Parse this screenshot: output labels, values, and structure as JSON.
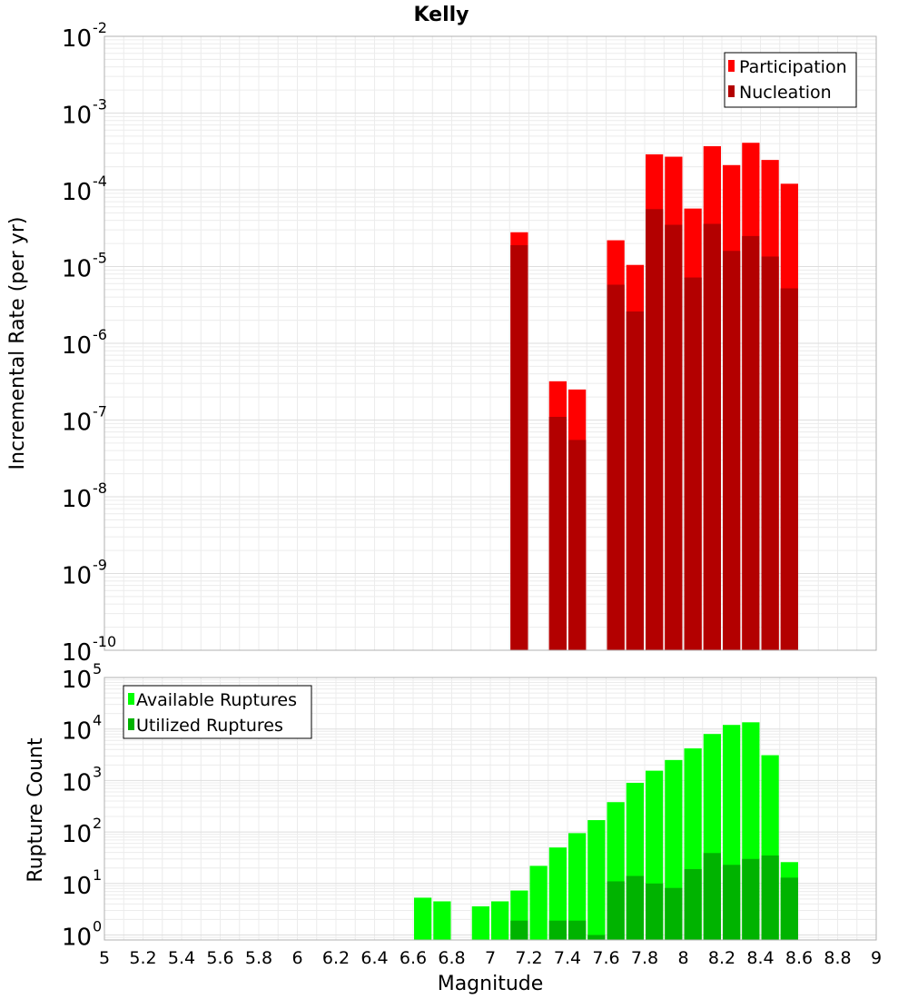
{
  "chart_data": [
    {
      "type": "bar",
      "title": "Kelly",
      "xlabel": "",
      "ylabel": "Incremental Rate (per yr)",
      "yscale": "log",
      "ylim": [
        1e-10,
        0.01
      ],
      "xlim": [
        5,
        9
      ],
      "grid": true,
      "legend": "top-right",
      "x": [
        7.1,
        7.3,
        7.4,
        7.6,
        7.7,
        7.8,
        7.9,
        8.0,
        8.1,
        8.2,
        8.3,
        8.4,
        8.5
      ],
      "series": [
        {
          "name": "Participation",
          "color": "#ff0000",
          "values": [
            2.8e-05,
            3.2e-07,
            2.5e-07,
            2.2e-05,
            1.05e-05,
            0.00029,
            0.00027,
            5.7e-05,
            0.00037,
            0.00021,
            0.00041,
            0.000245,
            0.00012
          ]
        },
        {
          "name": "Nucleation",
          "color": "#b30000",
          "values": [
            1.9e-05,
            1.1e-07,
            5.5e-08,
            5.8e-06,
            2.6e-06,
            5.6e-05,
            3.5e-05,
            7.2e-06,
            3.6e-05,
            1.6e-05,
            2.5e-05,
            1.35e-05,
            5.2e-06
          ]
        }
      ],
      "yticks": [
        {
          "base": "10",
          "exp": "-10"
        },
        {
          "base": "10",
          "exp": "-9"
        },
        {
          "base": "10",
          "exp": "-8"
        },
        {
          "base": "10",
          "exp": "-7"
        },
        {
          "base": "10",
          "exp": "-6"
        },
        {
          "base": "10",
          "exp": "-5"
        },
        {
          "base": "10",
          "exp": "-4"
        },
        {
          "base": "10",
          "exp": "-3"
        },
        {
          "base": "10",
          "exp": "-2"
        }
      ]
    },
    {
      "type": "bar",
      "title": "",
      "xlabel": "Magnitude",
      "ylabel": "Rupture Count",
      "yscale": "log",
      "ylim": [
        0.8,
        100000
      ],
      "xlim": [
        5,
        9
      ],
      "grid": true,
      "legend": "top-left",
      "x": [
        6.6,
        6.7,
        6.9,
        7.0,
        7.1,
        7.2,
        7.3,
        7.4,
        7.5,
        7.6,
        7.7,
        7.8,
        7.9,
        8.0,
        8.1,
        8.2,
        8.3,
        8.4,
        8.5
      ],
      "series": [
        {
          "name": "Available Ruptures",
          "color": "#00ff00",
          "values": [
            5.3,
            4.5,
            3.6,
            4.5,
            7.3,
            22,
            50,
            95,
            170,
            380,
            900,
            1550,
            2500,
            4200,
            8000,
            12000,
            13500,
            3100,
            26
          ]
        },
        {
          "name": "Utilized Ruptures",
          "color": "#00b300",
          "values": [
            0,
            0,
            0,
            0,
            1.9,
            0,
            1.9,
            1.9,
            1.0,
            11,
            14,
            10,
            8.2,
            19,
            39,
            23,
            30,
            35,
            13
          ]
        }
      ],
      "yticks": [
        {
          "base": "10",
          "exp": "0"
        },
        {
          "base": "10",
          "exp": "1"
        },
        {
          "base": "10",
          "exp": "2"
        },
        {
          "base": "10",
          "exp": "3"
        },
        {
          "base": "10",
          "exp": "4"
        },
        {
          "base": "10",
          "exp": "5"
        }
      ],
      "xticks": [
        "5",
        "5.2",
        "5.4",
        "5.6",
        "5.8",
        "6",
        "6.2",
        "6.4",
        "6.6",
        "6.8",
        "7",
        "7.2",
        "7.4",
        "7.6",
        "7.8",
        "8",
        "8.2",
        "8.4",
        "8.6",
        "8.8",
        "9"
      ],
      "bin_width": 0.1
    }
  ]
}
